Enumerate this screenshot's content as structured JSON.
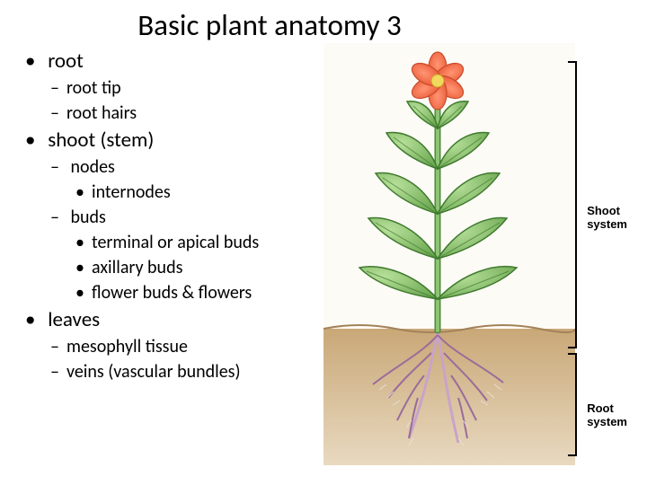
{
  "title": "Basic plant anatomy 3",
  "outline": {
    "root": {
      "label": "root",
      "items": [
        {
          "label": "root tip"
        },
        {
          "label": "root hairs"
        }
      ]
    },
    "shoot": {
      "label": "shoot (stem)",
      "items": [
        {
          "label": "nodes",
          "sub": [
            {
              "label": "internodes"
            }
          ]
        },
        {
          "label": "buds",
          "sub": [
            {
              "label": "terminal or apical buds"
            },
            {
              "label": "axillary buds"
            },
            {
              "label": "flower buds & flowers"
            }
          ]
        }
      ]
    },
    "leaves": {
      "label": "leaves",
      "items": [
        {
          "label": "mesophyll tissue"
        },
        {
          "label": "veins (vascular bundles)"
        }
      ]
    }
  },
  "figure": {
    "labels": {
      "shoot_system": "Shoot\nsystem",
      "root_system": "Root\nsystem"
    },
    "colors": {
      "soil_top": "#c9a877",
      "soil_bottom": "#e8d9c0",
      "soil_border": "#a4825a",
      "sky": "#fdfbf6",
      "stem": "#7fb86a",
      "stem_edge": "#4d8a3a",
      "leaf_fill": "#8cc474",
      "leaf_edge": "#3f7a2e",
      "flower_petal": "#f06c4a",
      "flower_petal_edge": "#c84a2a",
      "flower_center": "#f2d85e",
      "root_main": "#c9a3c9",
      "root_edge": "#9b6b9b",
      "root_hair": "#e8e2d6"
    }
  }
}
